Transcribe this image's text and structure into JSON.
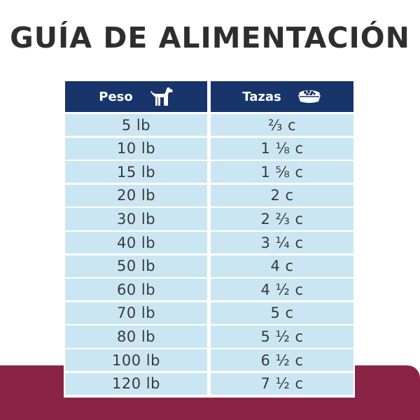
{
  "title": "GUÍA DE ALIMENTACIÓN",
  "table": {
    "header_peso": "Peso",
    "header_tazas": "Tazas",
    "icons": {
      "peso": "dog-icon",
      "tazas": "food-bowl-icon"
    },
    "rows": [
      {
        "peso": "5 lb",
        "tazas": "⅔ c"
      },
      {
        "peso": "10 lb",
        "tazas": "1 ⅛ c"
      },
      {
        "peso": "15 lb",
        "tazas": "1 ⅝ c"
      },
      {
        "peso": "20 lb",
        "tazas": "2 c"
      },
      {
        "peso": "30 lb",
        "tazas": "2 ⅔ c"
      },
      {
        "peso": "40 lb",
        "tazas": "3 ¼ c"
      },
      {
        "peso": "50 lb",
        "tazas": "4 c"
      },
      {
        "peso": "60 lb",
        "tazas": "4 ½ c"
      },
      {
        "peso": "70 lb",
        "tazas": "5 c"
      },
      {
        "peso": "80 lb",
        "tazas": "5 ½ c"
      },
      {
        "peso": "100 lb",
        "tazas": "6 ½ c"
      },
      {
        "peso": "120 lb",
        "tazas": "7 ½ c"
      }
    ]
  },
  "colors": {
    "header_bg": "#17346b",
    "cell_bg": "#cbe6f3",
    "title_text": "#2e2e2e",
    "footer_band": "#8a2447"
  }
}
